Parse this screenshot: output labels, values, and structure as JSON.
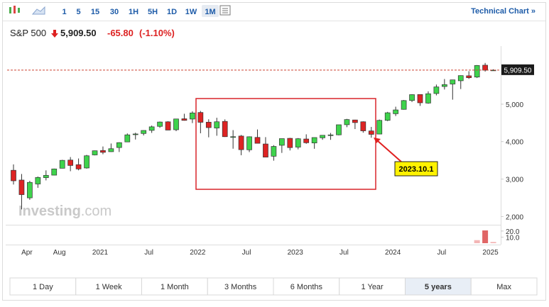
{
  "toolbar": {
    "intervals": [
      "1",
      "5",
      "15",
      "30",
      "1H",
      "5H",
      "1D",
      "1W",
      "1M"
    ],
    "selected": "1M",
    "link": "Technical Chart »"
  },
  "header": {
    "name": "S&P 500",
    "price": "5,909.50",
    "change": "-65.80",
    "change_pct": "(-1.10%)"
  },
  "watermark": {
    "brand": "Investing",
    "suffix": ".com"
  },
  "chart_data": {
    "type": "candlestick",
    "up_color": "#3ed34c",
    "down_color": "#dd2323",
    "categories": [
      null,
      null,
      "Apr",
      null,
      null,
      null,
      "Aug",
      null,
      null,
      null,
      null,
      "2021",
      null,
      null,
      null,
      null,
      null,
      "Jul",
      null,
      null,
      null,
      null,
      null,
      "2022",
      null,
      null,
      null,
      null,
      null,
      "Jul",
      null,
      null,
      null,
      null,
      null,
      "2023",
      null,
      null,
      null,
      null,
      null,
      "Jul",
      null,
      null,
      null,
      null,
      null,
      "2024",
      null,
      null,
      null,
      null,
      null,
      "Jul",
      null,
      null,
      null,
      null,
      null,
      "2025"
    ],
    "open": [
      3235,
      2974,
      2499,
      2869,
      3038,
      3105,
      3289,
      3508,
      3385,
      3296,
      3645,
      3764,
      3731,
      3842,
      3992,
      4191,
      4217,
      4300,
      4407,
      4529,
      4317,
      4610,
      4602,
      4778,
      4519,
      4363,
      4540,
      4130,
      4149,
      3782,
      4113,
      3937,
      3610,
      3902,
      4088,
      3853,
      4070,
      3964,
      4102,
      4166,
      4181,
      4451,
      4578,
      4530,
      4285,
      4202,
      4568,
      4745,
      4861,
      5098,
      5258,
      5029,
      5284,
      5471,
      5537,
      5624,
      5757,
      5723,
      6040,
      5906
    ],
    "high": [
      3393,
      3136,
      2954,
      3068,
      3233,
      3280,
      3514,
      3588,
      3550,
      3646,
      3760,
      3870,
      3950,
      3983,
      4218,
      4238,
      4302,
      4429,
      4537,
      4546,
      4608,
      4744,
      4808,
      4819,
      4596,
      4637,
      4593,
      4307,
      4178,
      4140,
      4325,
      4120,
      3906,
      4080,
      4101,
      4095,
      4195,
      4110,
      4170,
      4231,
      4449,
      4607,
      4584,
      4541,
      4393,
      4588,
      4794,
      4932,
      5111,
      5265,
      5264,
      5342,
      5523,
      5670,
      5652,
      5768,
      5879,
      6044,
      6100,
      5930
    ],
    "low": [
      2855,
      2192,
      2447,
      2767,
      2965,
      3101,
      3284,
      3210,
      3234,
      3279,
      3633,
      3663,
      3725,
      3723,
      3992,
      4056,
      4165,
      4233,
      4368,
      4306,
      4279,
      4560,
      4495,
      4223,
      4115,
      4157,
      4124,
      3811,
      3637,
      3721,
      3955,
      3585,
      3492,
      3699,
      3764,
      3794,
      3943,
      3809,
      4048,
      4048,
      4167,
      4385,
      4335,
      4238,
      4104,
      4197,
      4547,
      4682,
      4853,
      5057,
      4954,
      5012,
      5234,
      5391,
      5120,
      5403,
      5674,
      5697,
      5870,
      5890
    ],
    "close": [
      2954,
      2585,
      2912,
      3044,
      3100,
      3271,
      3500,
      3363,
      3270,
      3622,
      3756,
      3714,
      3811,
      3973,
      4181,
      4204,
      4298,
      4395,
      4523,
      4308,
      4605,
      4567,
      4766,
      4516,
      4374,
      4530,
      4132,
      4132,
      3785,
      4130,
      3955,
      3586,
      3872,
      4080,
      3840,
      4077,
      3970,
      4109,
      4169,
      4180,
      4450,
      4589,
      4508,
      4288,
      4194,
      4568,
      4770,
      4846,
      5096,
      5254,
      5036,
      5278,
      5460,
      5522,
      5648,
      5762,
      5705,
      6032,
      5906,
      5909.5
    ],
    "ylim": [
      1800,
      6550
    ],
    "yticks": [
      {
        "value": 2000,
        "label": "2,000"
      },
      {
        "value": 3000,
        "label": "3,000"
      },
      {
        "value": 4000,
        "label": "4,000"
      },
      {
        "value": 5000,
        "label": "5,000"
      }
    ],
    "last_price": {
      "value": 5909.5,
      "label": "5,909.50"
    },
    "volume": [
      null,
      null,
      null,
      null,
      null,
      null,
      null,
      null,
      null,
      null,
      null,
      null,
      null,
      null,
      null,
      null,
      null,
      null,
      null,
      null,
      null,
      null,
      null,
      null,
      null,
      null,
      null,
      null,
      null,
      null,
      null,
      null,
      null,
      null,
      null,
      null,
      null,
      null,
      null,
      null,
      null,
      null,
      null,
      null,
      null,
      null,
      null,
      null,
      null,
      null,
      null,
      null,
      null,
      null,
      null,
      null,
      null,
      5,
      21,
      2
    ],
    "volume_ylim": [
      0,
      28
    ],
    "volume_ticks": [
      {
        "value": 20,
        "label": "20.0"
      },
      {
        "value": 10,
        "label": "10.0"
      }
    ],
    "annotation": "2023.10.1"
  },
  "ranges": {
    "buttons": [
      "1 Day",
      "1 Week",
      "1 Month",
      "3 Months",
      "6 Months",
      "1 Year",
      "5 years",
      "Max"
    ],
    "selected": "5 years"
  }
}
